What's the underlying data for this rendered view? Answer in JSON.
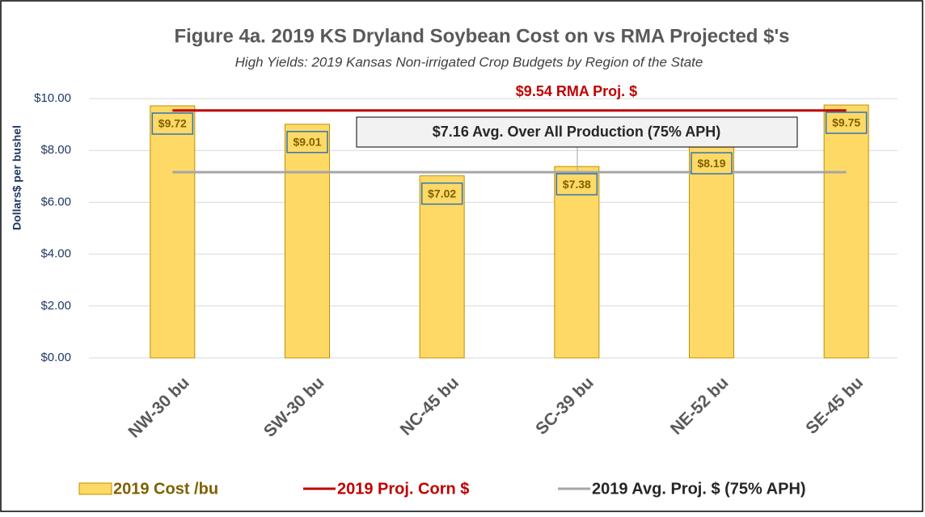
{
  "chart_data": {
    "type": "bar",
    "title": "Figure 4a. 2019 KS Dryland Soybean Cost on vs RMA Projected $'s",
    "subtitle": "High Yields: 2019 Kansas Non-irrigated Crop Budgets by Region of the State",
    "y_label": "Dollars$ per bushel",
    "categories": [
      "NW-30 bu",
      "SW-30 bu",
      "NC-45 bu",
      "SC-39 bu",
      "NE-52 bu",
      "SE-45 bu"
    ],
    "series": [
      {
        "name": "2019 Cost /bu",
        "type": "bar",
        "color": "#ffd966",
        "values": [
          9.72,
          9.01,
          7.02,
          7.38,
          8.19,
          9.75
        ],
        "value_labels": [
          "$9.72",
          "$9.01",
          "$7.02",
          "$7.38",
          "$8.19",
          "$9.75"
        ]
      },
      {
        "name": "2019 Proj. Corn $",
        "type": "line",
        "color": "#c00000",
        "values": [
          9.54,
          9.54,
          9.54,
          9.54,
          9.54,
          9.54
        ]
      },
      {
        "name": "2019 Avg. Proj. $ (75% APH)",
        "type": "line",
        "color": "#a6a6a6",
        "values": [
          7.16,
          7.16,
          7.16,
          7.16,
          7.16,
          7.16
        ]
      }
    ],
    "annotations": [
      "$9.54 RMA Proj. $",
      "$7.16 Avg. Over All Production (75% APH)"
    ],
    "ylim": [
      0,
      10
    ],
    "yticks": [
      {
        "value": 0,
        "label": "$0.00"
      },
      {
        "value": 2,
        "label": "$2.00"
      },
      {
        "value": 4,
        "label": "$4.00"
      },
      {
        "value": 6,
        "label": "$6.00"
      },
      {
        "value": 8,
        "label": "$8.00"
      },
      {
        "value": 10,
        "label": "$10.00"
      }
    ],
    "grid": true,
    "legend": "bottom"
  }
}
